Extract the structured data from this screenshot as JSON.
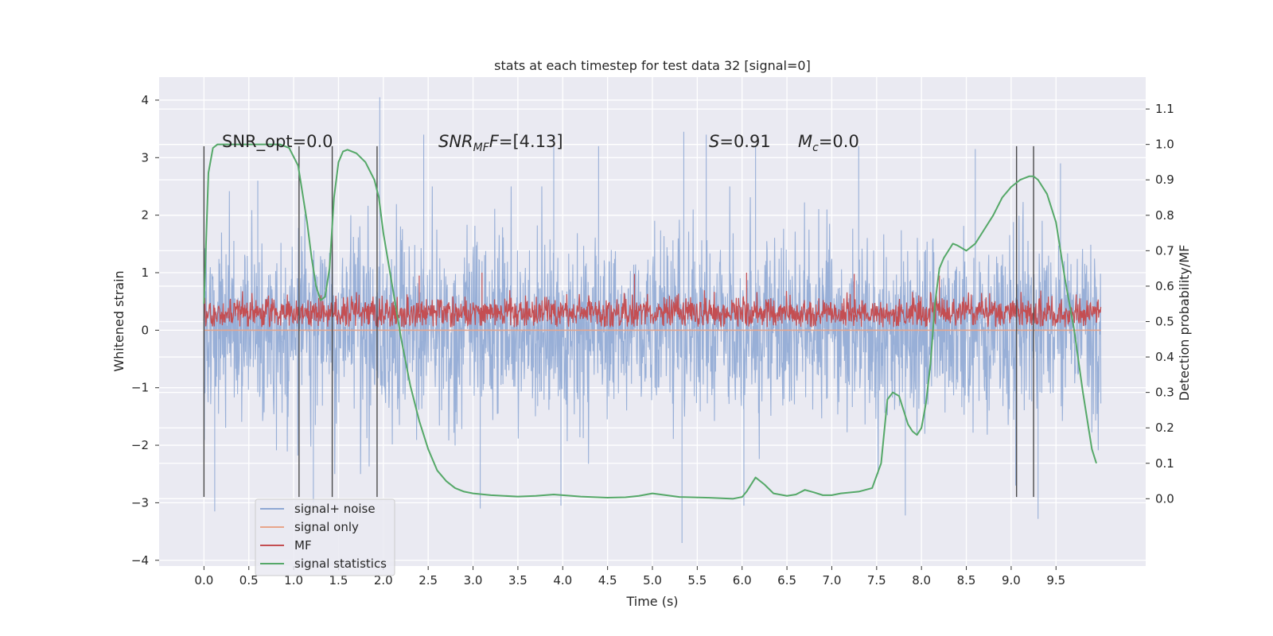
{
  "chart_data": {
    "type": "line",
    "title": "stats at each timestep for test data 32 [signal=0]",
    "xlabel": "Time (s)",
    "ylabel_left": "Whitened strain",
    "ylabel_right": "Detection probability/MF",
    "xlim": [
      -0.5,
      10.5
    ],
    "ylim_left": [
      -4.1,
      4.4
    ],
    "ylim_right": [
      -0.19,
      1.19
    ],
    "x_ticks": [
      0.0,
      0.5,
      1.0,
      1.5,
      2.0,
      2.5,
      3.0,
      3.5,
      4.0,
      4.5,
      5.0,
      5.5,
      6.0,
      6.5,
      7.0,
      7.5,
      8.0,
      8.5,
      9.0,
      9.5
    ],
    "x_tick_labels": [
      "0.0",
      "0.5",
      "1.0",
      "1.5",
      "2.0",
      "2.5",
      "3.0",
      "3.5",
      "4.0",
      "4.5",
      "5.0",
      "5.5",
      "6.0",
      "6.5",
      "7.0",
      "7.5",
      "8.0",
      "8.5",
      "9.0",
      "9.5"
    ],
    "y_ticks_left": [
      4,
      3,
      2,
      1,
      0,
      -1,
      -2,
      -3,
      -4
    ],
    "y_tick_labels_left": [
      "4",
      "3",
      "2",
      "1",
      "0",
      "−1",
      "−2",
      "−3",
      "−4"
    ],
    "y_ticks_right": [
      1.1,
      1.0,
      0.9,
      0.8,
      0.7,
      0.6,
      0.5,
      0.4,
      0.3,
      0.2,
      0.1,
      0.0
    ],
    "y_tick_labels_right": [
      "1.1",
      "1.0",
      "0.9",
      "0.8",
      "0.7",
      "0.6",
      "0.5",
      "0.4",
      "0.3",
      "0.2",
      "0.1",
      "0.0"
    ],
    "grid": true,
    "legend_position": "lower-left",
    "annotations": {
      "snr_opt": "SNR_opt=0.0",
      "snr_mf_main": "SNR",
      "snr_mf_sub": "MF",
      "snr_mf_italic": "F",
      "snr_mf_value": "=[4.13]",
      "s_symbol": "S",
      "s_value": "=0.91",
      "mc_symbol": "M",
      "mc_sub": "c",
      "mc_value": "=0.0"
    },
    "vertical_markers": [
      0.0,
      1.06,
      1.43,
      1.93,
      9.06,
      9.25
    ],
    "vertical_marker_range": [
      -2.9,
      3.2
    ],
    "series": [
      {
        "name": "signal+ noise",
        "color": "#8fa8d4",
        "axis": "left",
        "x_range": [
          0.0,
          10.0
        ],
        "envelope_typical": [
          -1.6,
          1.35
        ],
        "peaks": [
          [
            0.6,
            2.6
          ],
          [
            1.96,
            4.05
          ],
          [
            2.45,
            3.4
          ],
          [
            3.9,
            3.4
          ],
          [
            4.4,
            3.2
          ],
          [
            5.35,
            3.45
          ],
          [
            5.6,
            3.4
          ],
          [
            6.15,
            3.2
          ],
          [
            7.3,
            3.2
          ],
          [
            8.6,
            3.15
          ],
          [
            9.55,
            2.9
          ],
          [
            0.12,
            -3.15
          ],
          [
            1.22,
            -3.0
          ],
          [
            3.08,
            -3.1
          ],
          [
            3.98,
            -3.05
          ],
          [
            5.33,
            -3.7
          ],
          [
            6.02,
            -3.05
          ],
          [
            7.82,
            -3.22
          ],
          [
            9.3,
            -3.28
          ],
          [
            9.05,
            -2.7
          ]
        ]
      },
      {
        "name": "signal only",
        "color": "#e8a58a",
        "axis": "left",
        "x": [
          0.0,
          10.0
        ],
        "y": [
          0.0,
          0.0
        ]
      },
      {
        "name": "MF",
        "color": "#c44e52",
        "axis": "left",
        "x_range": [
          0.0,
          10.0
        ],
        "band": [
          0.05,
          0.7
        ],
        "peaks": [
          [
            2.4,
            0.95
          ],
          [
            3.1,
            1.0
          ],
          [
            4.8,
            0.98
          ],
          [
            6.05,
            1.0
          ],
          [
            7.25,
            0.98
          ],
          [
            8.2,
            0.95
          ]
        ]
      },
      {
        "name": "signal statistics",
        "color": "#55a868",
        "axis": "right",
        "x": [
          0.0,
          0.05,
          0.1,
          0.15,
          0.2,
          0.3,
          0.5,
          0.7,
          0.85,
          0.95,
          1.05,
          1.15,
          1.2,
          1.25,
          1.3,
          1.35,
          1.4,
          1.45,
          1.5,
          1.55,
          1.6,
          1.65,
          1.7,
          1.8,
          1.9,
          1.95,
          2.0,
          2.1,
          2.2,
          2.3,
          2.4,
          2.5,
          2.6,
          2.7,
          2.8,
          2.9,
          3.0,
          3.2,
          3.5,
          3.7,
          3.9,
          4.2,
          4.5,
          4.7,
          4.85,
          5.0,
          5.3,
          5.6,
          5.9,
          6.0,
          6.05,
          6.15,
          6.25,
          6.35,
          6.5,
          6.6,
          6.7,
          6.8,
          6.9,
          7.0,
          7.1,
          7.3,
          7.45,
          7.55,
          7.62,
          7.68,
          7.75,
          7.8,
          7.85,
          7.9,
          7.95,
          8.0,
          8.05,
          8.1,
          8.15,
          8.2,
          8.25,
          8.3,
          8.35,
          8.4,
          8.5,
          8.6,
          8.7,
          8.8,
          8.9,
          9.0,
          9.1,
          9.2,
          9.25,
          9.3,
          9.4,
          9.5,
          9.6,
          9.7,
          9.8,
          9.9,
          9.95
        ],
        "y": [
          0.55,
          0.92,
          0.99,
          1.0,
          1.0,
          1.0,
          1.0,
          1.0,
          1.0,
          0.99,
          0.94,
          0.78,
          0.68,
          0.6,
          0.56,
          0.57,
          0.65,
          0.85,
          0.95,
          0.98,
          0.985,
          0.98,
          0.975,
          0.95,
          0.9,
          0.85,
          0.75,
          0.6,
          0.45,
          0.32,
          0.22,
          0.14,
          0.08,
          0.05,
          0.03,
          0.02,
          0.015,
          0.01,
          0.006,
          0.008,
          0.012,
          0.006,
          0.003,
          0.004,
          0.008,
          0.015,
          0.005,
          0.003,
          0.0,
          0.005,
          0.02,
          0.06,
          0.04,
          0.015,
          0.008,
          0.012,
          0.025,
          0.018,
          0.01,
          0.01,
          0.015,
          0.02,
          0.03,
          0.1,
          0.28,
          0.3,
          0.29,
          0.25,
          0.21,
          0.19,
          0.18,
          0.2,
          0.27,
          0.38,
          0.55,
          0.65,
          0.68,
          0.7,
          0.72,
          0.715,
          0.7,
          0.72,
          0.76,
          0.8,
          0.85,
          0.88,
          0.9,
          0.91,
          0.91,
          0.9,
          0.86,
          0.78,
          0.62,
          0.48,
          0.3,
          0.14,
          0.1
        ]
      }
    ]
  }
}
